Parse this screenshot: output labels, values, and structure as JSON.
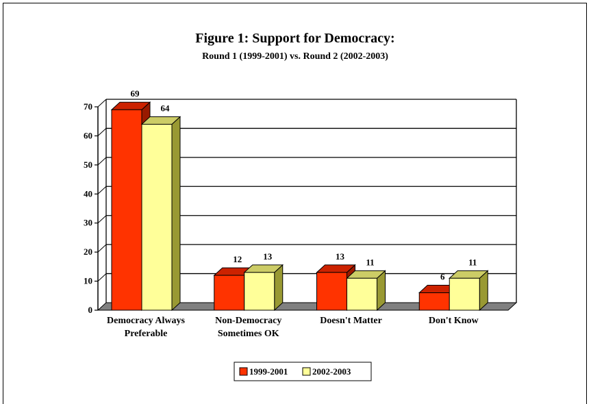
{
  "chart_data": {
    "type": "bar",
    "title": "Figure 1:  Support for Democracy:",
    "subtitle": "Round 1 (1999-2001) vs. Round 2 (2002-2003)",
    "categories": [
      [
        "Democracy Always",
        "Preferable"
      ],
      [
        "Non-Democracy",
        "Sometimes OK"
      ],
      [
        "Doesn't Matter"
      ],
      [
        "Don't Know"
      ]
    ],
    "series": [
      {
        "name": "1999-2001",
        "values": [
          69,
          12,
          13,
          6
        ]
      },
      {
        "name": "2002-2003",
        "values": [
          64,
          13,
          11,
          11
        ]
      }
    ],
    "ylim": [
      0,
      70
    ],
    "yticks": [
      "0",
      "10",
      "20",
      "30",
      "40",
      "50",
      "60",
      "70"
    ],
    "grid": true,
    "legend_position": "bottom-center",
    "colors": {
      "s1_front": "#ff3300",
      "s1_top": "#cc2200",
      "s1_side": "#991a00",
      "s2_front": "#ffff99",
      "s2_top": "#cccc66",
      "s2_side": "#999933",
      "floor": "#808080"
    }
  }
}
